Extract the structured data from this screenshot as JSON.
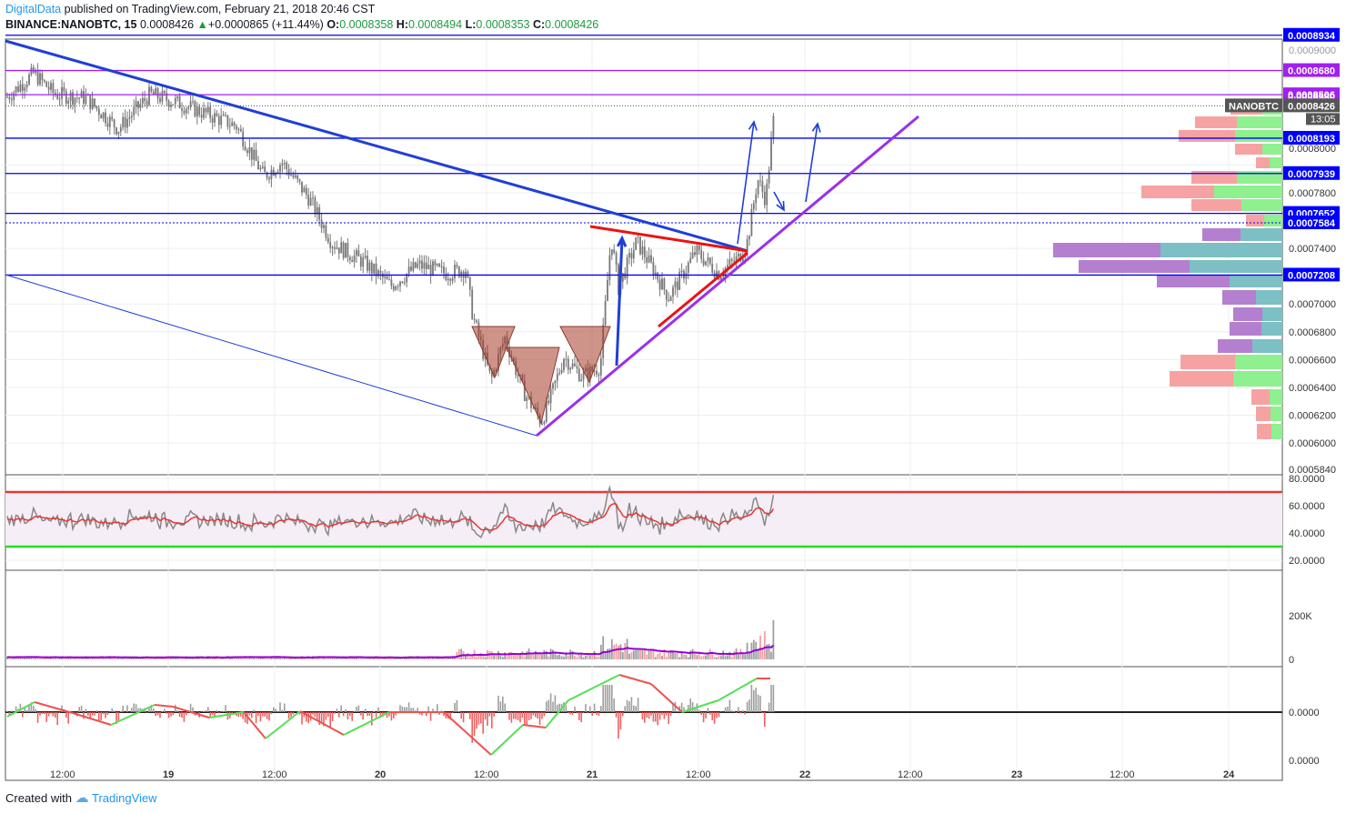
{
  "header": {
    "publisher": "DigitalData",
    "published_text": " published on TradingView.com, February 21, 2018 20:46 CST",
    "symbol": "BINANCE:NANOBTC, 15",
    "last": "0.0008426",
    "change": "+0.0000865 (+11.44%)",
    "o_label": "O:",
    "o": "0.0008358",
    "h_label": "H:",
    "h": "0.0008494",
    "l_label": "L:",
    "l": "0.0008353",
    "c_label": "C:",
    "c": "0.0008426"
  },
  "footer": {
    "created_with": "Created with",
    "brand": "TradingView"
  },
  "price_axis": {
    "ticks": [
      "0.0008000",
      "0.0007800",
      "0.0007400",
      "0.0007000",
      "0.0006800",
      "0.0006600",
      "0.0006400",
      "0.0006200",
      "0.0006000",
      "0.0005840"
    ],
    "top_faded": "0.0009000",
    "hline_labels": [
      "0.0008934",
      "0.0008680",
      "0.0008506",
      "0.0008193",
      "0.0007939",
      "0.0007652",
      "0.0007584",
      "0.0007208"
    ],
    "symbol_tag": "NANOBTC",
    "current_price": "0.0008426",
    "countdown": "13:05",
    "overlap_tag": "0.0008580"
  },
  "rsi_axis": [
    "80.0000",
    "60.0000",
    "40.0000",
    "20.0000"
  ],
  "volume_axis": [
    "200K",
    "0"
  ],
  "osc_axis": [
    "0.0000",
    "0.0000"
  ],
  "time_axis": [
    "12:00",
    "19",
    "12:00",
    "20",
    "12:00",
    "21",
    "12:00",
    "22",
    "12:00",
    "23",
    "12:00",
    "24"
  ],
  "colors": {
    "hline_blue": "#0000ff",
    "hline_purple": "#a020f0",
    "trend_blue": "#1f3fd6",
    "trend_purple": "#9b30e8",
    "triangle_red": "#ee1111",
    "rsi_red": "#e53935",
    "rsi_green": "#22dd22",
    "candle": "#777777",
    "vol_ma": "#9400d3"
  },
  "chart_data": {
    "type": "candlestick",
    "panes": [
      "price",
      "rsi",
      "volume",
      "oscillator"
    ],
    "x_axis": "time",
    "price_ylim": [
      0.000584,
      0.0009
    ],
    "horizontal_levels": [
      0.0008934,
      0.000868,
      0.0008506,
      0.0008193,
      0.0007939,
      0.0007652,
      0.0007584,
      0.0007208
    ],
    "rsi_levels": [
      70,
      30
    ],
    "rsi_ylim": [
      20,
      80
    ],
    "volume_ylim": [
      0,
      400000
    ],
    "last_close": 0.0008426
  }
}
